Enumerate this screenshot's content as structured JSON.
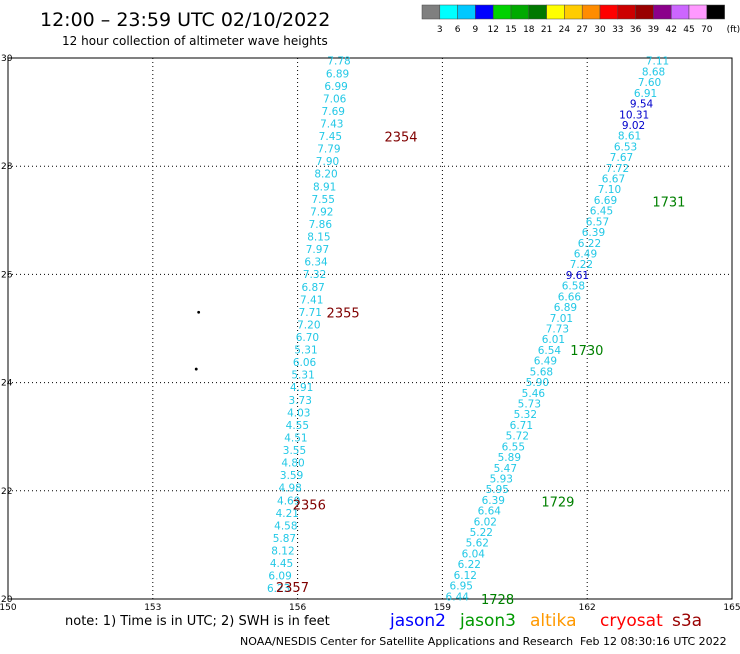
{
  "header": {
    "title": "12:00 – 23:59 UTC 02/10/2022",
    "subtitle": "12 hour collection of altimeter wave heights"
  },
  "colorbar": {
    "colors": [
      "#7f7f7f",
      "#00ffff",
      "#00c8ff",
      "#0000ff",
      "#00d200",
      "#00aa00",
      "#007800",
      "#ffff00",
      "#ffcc00",
      "#ff8c00",
      "#ff0000",
      "#cc0000",
      "#990000",
      "#8b008b",
      "#cc66ff",
      "#ff99ff",
      "#000000"
    ],
    "labels": [
      "3",
      "6",
      "9",
      "12",
      "15",
      "18",
      "21",
      "24",
      "27",
      "30",
      "33",
      "36",
      "39",
      "42",
      "45",
      "70"
    ],
    "unit": "(ft)"
  },
  "map": {
    "lon_range": [
      150,
      165
    ],
    "lat_range": [
      20,
      30
    ],
    "x_ticks": [
      {
        "value": 150,
        "label": "150"
      },
      {
        "value": 153,
        "label": "153"
      },
      {
        "value": 156,
        "label": "156"
      },
      {
        "value": 159,
        "label": "159"
      },
      {
        "value": 162,
        "label": "162"
      },
      {
        "value": 165,
        "label": "165"
      }
    ],
    "y_ticks": [
      {
        "value": 20,
        "label": "20"
      },
      {
        "value": 22,
        "label": "22"
      },
      {
        "value": 24,
        "label": "24"
      },
      {
        "value": 26,
        "label": "26"
      },
      {
        "value": 28,
        "label": "28"
      },
      {
        "value": 30,
        "label": "30"
      }
    ],
    "grid": true,
    "tracks": [
      {
        "id": "west",
        "start": [
          155.85,
          20.2
        ],
        "end": [
          157.1,
          29.95
        ],
        "color": "#22c8e6",
        "values": [
          "6.23",
          "6.09",
          "4.45",
          "8.12",
          "5.87",
          "4.58",
          "4.21",
          "4.69",
          "4.98",
          "3.59",
          "4.80",
          "3.55",
          "4.51",
          "4.55",
          "4.03",
          "3.73",
          "4.91",
          "5.31",
          "6.06",
          "5.31",
          "6.70",
          "7.20",
          "7.71",
          "7.41",
          "6.87",
          "7.32",
          "6.34",
          "7.97",
          "8.15",
          "7.86",
          "7.92",
          "7.55",
          "8.91",
          "8.20",
          "7.90",
          "7.79",
          "7.45",
          "7.43",
          "7.69",
          "7.06",
          "6.99",
          "6.89",
          "7.78"
        ],
        "time_labels": [
          {
            "text": "2357",
            "lon": 155.55,
            "lat": 20.22
          },
          {
            "text": "2356",
            "lon": 155.9,
            "lat": 21.75
          },
          {
            "text": "2355",
            "lon": 156.6,
            "lat": 25.3
          },
          {
            "text": "2354",
            "lon": 157.8,
            "lat": 28.55
          }
        ]
      },
      {
        "id": "east",
        "start": [
          159.55,
          20.05
        ],
        "end": [
          163.7,
          29.95
        ],
        "color": "#22c8e6",
        "values": [
          "6.44",
          "6.95",
          "6.12",
          "6.22",
          "6.04",
          "5.62",
          "5.22",
          "6.02",
          "6.64",
          "6.39",
          "5.95",
          "5.93",
          "5.47",
          "5.89",
          "6.55",
          "5.72",
          "6.71",
          "5.32",
          "5.73",
          "5.46",
          "5.90",
          "5.68",
          "6.49",
          "6.54",
          "6.01",
          "7.73",
          "7.01",
          "6.89",
          "6.66",
          "6.58",
          "9.61",
          "7.22",
          "6.49",
          "6.22",
          "6.39",
          "6.57",
          "6.45",
          "6.69",
          "7.10",
          "6.67",
          "7.72",
          "7.67",
          "6.53",
          "8.61",
          "9.02",
          "10.31",
          "9.54",
          "6.91",
          "7.60",
          "8.68",
          "7.11"
        ],
        "dark_values": [
          "9.61",
          "9.02",
          "10.31",
          "9.54"
        ],
        "time_labels": [
          {
            "text": "1728",
            "lon": 159.8,
            "lat": 20.0
          },
          {
            "text": "1729",
            "lon": 161.05,
            "lat": 21.8
          },
          {
            "text": "1730",
            "lon": 161.65,
            "lat": 24.6
          },
          {
            "text": "1731",
            "lon": 163.35,
            "lat": 27.35
          }
        ]
      }
    ],
    "dots": [
      {
        "lon": 153.95,
        "lat": 25.3
      },
      {
        "lon": 153.9,
        "lat": 24.25
      }
    ]
  },
  "footer": {
    "note": "note:  1) Time is in UTC;  2) SWH is in feet",
    "satellites": [
      {
        "name": "jason2",
        "color": "#0000ff"
      },
      {
        "name": "jason3",
        "color": "#009900"
      },
      {
        "name": "altika",
        "color": "#ff9900"
      },
      {
        "name": "cryosat",
        "color": "#ff0000"
      },
      {
        "name": "s3a",
        "color": "#990000"
      }
    ],
    "credit": "NOAA/NESDIS Center for Satellite Applications and Research",
    "timestamp": "Feb 12 08:30:16 UTC 2022"
  }
}
